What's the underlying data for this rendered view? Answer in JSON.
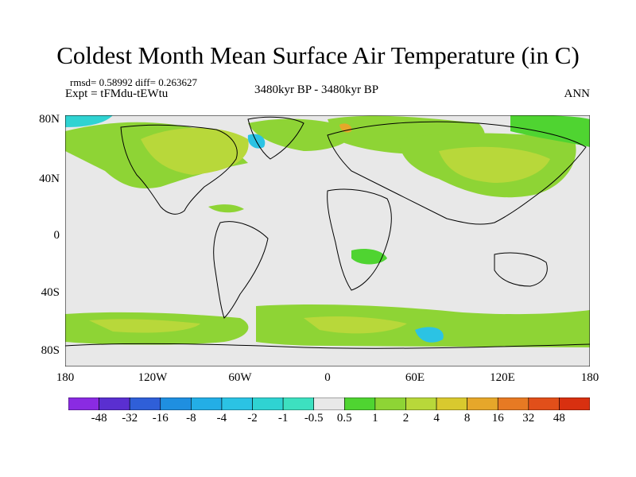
{
  "title": "Coldest Month Mean Surface Air Temperature (in C)",
  "stats_line": "rmsd= 0.58992 diff= 0.263627",
  "experiment_line": "Expt = tFMdu-tEWtu",
  "period_line": "3480kyr BP - 3480kyr BP",
  "season_label": "ANN",
  "y_axis_labels": [
    "80N",
    "40N",
    "0",
    "40S",
    "80S"
  ],
  "x_axis_labels": [
    "180",
    "120W",
    "60W",
    "0",
    "60E",
    "120E",
    "180"
  ],
  "colorbar": {
    "labels": [
      "-48",
      "-32",
      "-16",
      "-8",
      "-4",
      "-2",
      "-1",
      "-0.5",
      "0.5",
      "1",
      "2",
      "4",
      "8",
      "16",
      "32",
      "48"
    ],
    "colors": [
      "#8a2be2",
      "#5a2fd0",
      "#2f5fd8",
      "#1f8fe0",
      "#23aee6",
      "#2bc3e4",
      "#2fd3d2",
      "#3de0c0",
      "#e8e8e8",
      "#4fd431",
      "#8ed435",
      "#b8d83a",
      "#d9c92e",
      "#e6a72a",
      "#e77a23",
      "#e14f1a",
      "#d83010"
    ]
  },
  "map_colors": {
    "ocean": "#e8e8e8",
    "coast": "#000000"
  }
}
